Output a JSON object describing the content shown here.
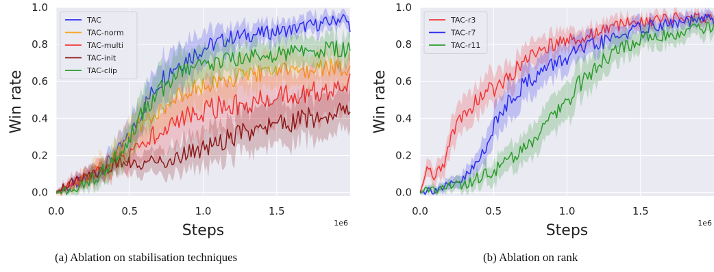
{
  "chart_data": [
    {
      "panel": "a",
      "type": "line",
      "caption": "(a)  Ablation on stabilisation techniques",
      "xlabel": "Steps",
      "ylabel": "Win rate",
      "x_offset_label": "1e6",
      "xlim": [
        0,
        2000000
      ],
      "ylim": [
        -0.02,
        1.0
      ],
      "xticks": [
        0,
        500000,
        1000000,
        1500000
      ],
      "xtick_labels": [
        "0.0",
        "0.5",
        "1.0",
        "1.5"
      ],
      "yticks": [
        0.0,
        0.2,
        0.4,
        0.6,
        0.8,
        1.0
      ],
      "ytick_labels": [
        "0.0",
        "0.2",
        "0.4",
        "0.6",
        "0.8",
        "1.0"
      ],
      "grid": true,
      "legend_position": "top-left",
      "series": [
        {
          "name": "TAC",
          "color": "#2b2bf2",
          "x": [
            0,
            100000,
            200000,
            300000,
            400000,
            500000,
            600000,
            700000,
            800000,
            900000,
            1000000,
            1100000,
            1200000,
            1300000,
            1400000,
            1500000,
            1600000,
            1700000,
            1800000,
            1900000,
            1950000,
            2000000
          ],
          "y": [
            0.0,
            0.03,
            0.07,
            0.12,
            0.2,
            0.3,
            0.47,
            0.6,
            0.68,
            0.73,
            0.78,
            0.81,
            0.84,
            0.85,
            0.86,
            0.87,
            0.88,
            0.9,
            0.91,
            0.93,
            0.95,
            0.9
          ],
          "band": [
            0.01,
            0.02,
            0.04,
            0.05,
            0.06,
            0.08,
            0.1,
            0.12,
            0.12,
            0.11,
            0.1,
            0.08,
            0.07,
            0.06,
            0.06,
            0.06,
            0.05,
            0.05,
            0.05,
            0.04,
            0.04,
            0.04
          ]
        },
        {
          "name": "TAC-norm",
          "color": "#f5a623",
          "x": [
            0,
            100000,
            200000,
            300000,
            400000,
            500000,
            600000,
            700000,
            800000,
            900000,
            1000000,
            1100000,
            1200000,
            1300000,
            1400000,
            1500000,
            1600000,
            1700000,
            1800000,
            1900000,
            2000000
          ],
          "y": [
            0.0,
            0.03,
            0.07,
            0.13,
            0.2,
            0.3,
            0.38,
            0.45,
            0.5,
            0.55,
            0.58,
            0.6,
            0.62,
            0.63,
            0.64,
            0.65,
            0.66,
            0.66,
            0.67,
            0.68,
            0.67
          ],
          "band": [
            0.01,
            0.02,
            0.04,
            0.06,
            0.08,
            0.1,
            0.12,
            0.13,
            0.13,
            0.12,
            0.11,
            0.11,
            0.1,
            0.1,
            0.1,
            0.1,
            0.09,
            0.09,
            0.09,
            0.09,
            0.09
          ]
        },
        {
          "name": "TAC-multi",
          "color": "#f23535",
          "x": [
            0,
            100000,
            200000,
            300000,
            400000,
            500000,
            600000,
            700000,
            800000,
            900000,
            1000000,
            1100000,
            1200000,
            1300000,
            1400000,
            1500000,
            1600000,
            1700000,
            1800000,
            1900000,
            2000000
          ],
          "y": [
            0.0,
            0.04,
            0.08,
            0.12,
            0.16,
            0.2,
            0.27,
            0.33,
            0.37,
            0.41,
            0.44,
            0.46,
            0.47,
            0.49,
            0.5,
            0.51,
            0.53,
            0.54,
            0.55,
            0.56,
            0.6
          ],
          "band": [
            0.01,
            0.03,
            0.05,
            0.06,
            0.07,
            0.08,
            0.1,
            0.12,
            0.13,
            0.14,
            0.14,
            0.15,
            0.15,
            0.15,
            0.15,
            0.15,
            0.14,
            0.14,
            0.14,
            0.14,
            0.14
          ]
        },
        {
          "name": "TAC-init",
          "color": "#8b1a1a",
          "x": [
            0,
            100000,
            200000,
            300000,
            400000,
            500000,
            600000,
            700000,
            800000,
            900000,
            1000000,
            1100000,
            1200000,
            1300000,
            1400000,
            1500000,
            1600000,
            1700000,
            1800000,
            1900000,
            2000000
          ],
          "y": [
            0.0,
            0.05,
            0.08,
            0.12,
            0.15,
            0.17,
            0.16,
            0.17,
            0.18,
            0.21,
            0.24,
            0.27,
            0.3,
            0.33,
            0.35,
            0.36,
            0.38,
            0.4,
            0.41,
            0.44,
            0.45
          ],
          "band": [
            0.01,
            0.03,
            0.04,
            0.05,
            0.05,
            0.06,
            0.06,
            0.07,
            0.08,
            0.09,
            0.1,
            0.11,
            0.11,
            0.12,
            0.12,
            0.12,
            0.12,
            0.12,
            0.12,
            0.11,
            0.11
          ]
        },
        {
          "name": "TAC-clip",
          "color": "#2a9a2a",
          "x": [
            0,
            100000,
            200000,
            300000,
            400000,
            500000,
            600000,
            700000,
            800000,
            900000,
            1000000,
            1100000,
            1200000,
            1300000,
            1400000,
            1500000,
            1600000,
            1700000,
            1800000,
            1900000,
            2000000
          ],
          "y": [
            0.0,
            0.02,
            0.05,
            0.1,
            0.18,
            0.3,
            0.44,
            0.55,
            0.62,
            0.66,
            0.69,
            0.71,
            0.72,
            0.73,
            0.74,
            0.75,
            0.76,
            0.77,
            0.77,
            0.78,
            0.77
          ],
          "band": [
            0.01,
            0.02,
            0.04,
            0.06,
            0.08,
            0.1,
            0.12,
            0.12,
            0.11,
            0.1,
            0.1,
            0.09,
            0.09,
            0.08,
            0.08,
            0.08,
            0.08,
            0.08,
            0.08,
            0.08,
            0.08
          ]
        }
      ]
    },
    {
      "panel": "b",
      "type": "line",
      "caption": "(b)  Ablation on rank",
      "xlabel": "Steps",
      "ylabel": "Win rate",
      "x_offset_label": "1e6",
      "xlim": [
        0,
        2000000
      ],
      "ylim": [
        -0.02,
        1.0
      ],
      "xticks": [
        0,
        500000,
        1000000,
        1500000
      ],
      "xtick_labels": [
        "0.0",
        "0.5",
        "1.0",
        "1.5"
      ],
      "yticks": [
        0.0,
        0.2,
        0.4,
        0.6,
        0.8,
        1.0
      ],
      "ytick_labels": [
        "0.0",
        "0.2",
        "0.4",
        "0.6",
        "0.8",
        "1.0"
      ],
      "grid": true,
      "legend_position": "top-left",
      "series": [
        {
          "name": "TAC-r3",
          "color": "#f23535",
          "x": [
            0,
            50000,
            100000,
            150000,
            200000,
            250000,
            300000,
            400000,
            500000,
            600000,
            700000,
            800000,
            900000,
            1000000,
            1100000,
            1200000,
            1300000,
            1400000,
            1500000,
            1600000,
            1700000,
            1800000,
            1900000,
            2000000
          ],
          "y": [
            0.0,
            0.12,
            0.1,
            0.12,
            0.25,
            0.38,
            0.42,
            0.52,
            0.56,
            0.62,
            0.7,
            0.76,
            0.8,
            0.82,
            0.84,
            0.87,
            0.89,
            0.91,
            0.93,
            0.93,
            0.94,
            0.95,
            0.95,
            0.93
          ],
          "band": [
            0.01,
            0.05,
            0.05,
            0.06,
            0.08,
            0.09,
            0.1,
            0.09,
            0.09,
            0.08,
            0.08,
            0.07,
            0.07,
            0.06,
            0.06,
            0.05,
            0.05,
            0.04,
            0.04,
            0.04,
            0.03,
            0.03,
            0.03,
            0.03
          ]
        },
        {
          "name": "TAC-r7",
          "color": "#2b2bf2",
          "x": [
            0,
            100000,
            200000,
            300000,
            400000,
            500000,
            600000,
            700000,
            800000,
            900000,
            1000000,
            1100000,
            1200000,
            1300000,
            1400000,
            1500000,
            1600000,
            1700000,
            1800000,
            1900000,
            2000000
          ],
          "y": [
            0.0,
            0.02,
            0.03,
            0.07,
            0.17,
            0.35,
            0.5,
            0.58,
            0.64,
            0.69,
            0.73,
            0.77,
            0.8,
            0.83,
            0.86,
            0.89,
            0.9,
            0.91,
            0.92,
            0.93,
            0.94
          ],
          "band": [
            0.01,
            0.02,
            0.03,
            0.04,
            0.06,
            0.09,
            0.1,
            0.1,
            0.09,
            0.08,
            0.08,
            0.07,
            0.06,
            0.06,
            0.05,
            0.05,
            0.04,
            0.04,
            0.04,
            0.04,
            0.04
          ]
        },
        {
          "name": "TAC-r11",
          "color": "#2a9a2a",
          "x": [
            0,
            100000,
            200000,
            300000,
            400000,
            500000,
            600000,
            700000,
            800000,
            900000,
            1000000,
            1100000,
            1200000,
            1300000,
            1400000,
            1500000,
            1600000,
            1700000,
            1800000,
            1900000,
            2000000
          ],
          "y": [
            0.0,
            0.02,
            0.03,
            0.05,
            0.08,
            0.12,
            0.17,
            0.24,
            0.32,
            0.4,
            0.5,
            0.6,
            0.68,
            0.74,
            0.79,
            0.83,
            0.85,
            0.86,
            0.87,
            0.88,
            0.89
          ],
          "band": [
            0.01,
            0.02,
            0.03,
            0.04,
            0.05,
            0.06,
            0.07,
            0.08,
            0.09,
            0.1,
            0.1,
            0.1,
            0.09,
            0.08,
            0.07,
            0.06,
            0.06,
            0.05,
            0.05,
            0.05,
            0.05
          ]
        }
      ]
    }
  ]
}
